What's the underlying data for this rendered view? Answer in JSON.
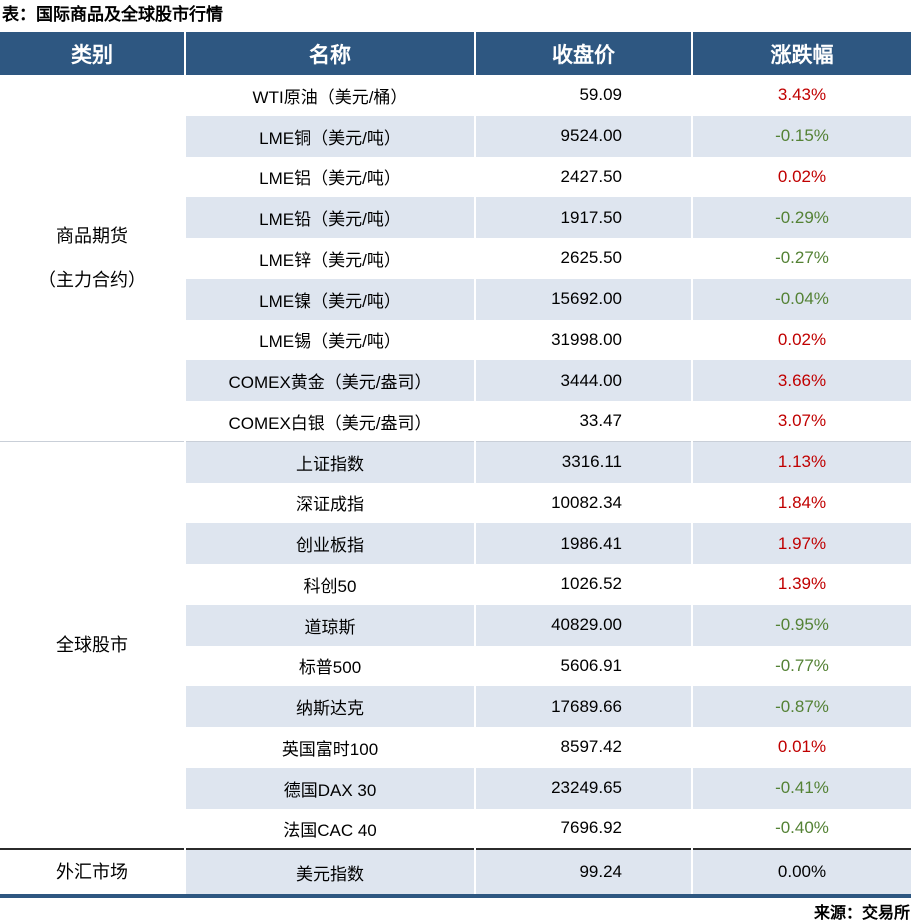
{
  "title": "表：国际商品及全球股市行情",
  "source": "来源：交易所",
  "colors": {
    "header_bg": "#2E5781",
    "stripe": "#DEE5EF",
    "up": "#C00000",
    "down": "#548235"
  },
  "table": {
    "headers": [
      "类别",
      "名称",
      "收盘价",
      "涨跌幅"
    ],
    "sections": [
      {
        "category_lines": [
          "商品期货",
          "（主力合约）"
        ],
        "rows": [
          {
            "name": "WTI原油（美元/桶）",
            "close": "59.09",
            "change": "3.43%",
            "dir": "up"
          },
          {
            "name": "LME铜（美元/吨）",
            "close": "9524.00",
            "change": "-0.15%",
            "dir": "down"
          },
          {
            "name": "LME铝（美元/吨）",
            "close": "2427.50",
            "change": "0.02%",
            "dir": "up"
          },
          {
            "name": "LME铅（美元/吨）",
            "close": "1917.50",
            "change": "-0.29%",
            "dir": "down"
          },
          {
            "name": "LME锌（美元/吨）",
            "close": "2625.50",
            "change": "-0.27%",
            "dir": "down"
          },
          {
            "name": "LME镍（美元/吨）",
            "close": "15692.00",
            "change": "-0.04%",
            "dir": "down"
          },
          {
            "name": "LME锡（美元/吨）",
            "close": "31998.00",
            "change": "0.02%",
            "dir": "up"
          },
          {
            "name": "COMEX黄金（美元/盎司）",
            "close": "3444.00",
            "change": "3.66%",
            "dir": "up"
          },
          {
            "name": "COMEX白银（美元/盎司）",
            "close": "33.47",
            "change": "3.07%",
            "dir": "up"
          }
        ]
      },
      {
        "category_lines": [
          "全球股市"
        ],
        "rows": [
          {
            "name": "上证指数",
            "close": "3316.11",
            "change": "1.13%",
            "dir": "up"
          },
          {
            "name": "深证成指",
            "close": "10082.34",
            "change": "1.84%",
            "dir": "up"
          },
          {
            "name": "创业板指",
            "close": "1986.41",
            "change": "1.97%",
            "dir": "up"
          },
          {
            "name": "科创50",
            "close": "1026.52",
            "change": "1.39%",
            "dir": "up"
          },
          {
            "name": "道琼斯",
            "close": "40829.00",
            "change": "-0.95%",
            "dir": "down"
          },
          {
            "name": "标普500",
            "close": "5606.91",
            "change": "-0.77%",
            "dir": "down"
          },
          {
            "name": "纳斯达克",
            "close": "17689.66",
            "change": "-0.87%",
            "dir": "down"
          },
          {
            "name": "英国富时100",
            "close": "8597.42",
            "change": "0.01%",
            "dir": "up"
          },
          {
            "name": "德国DAX 30",
            "close": "23249.65",
            "change": "-0.41%",
            "dir": "down"
          },
          {
            "name": "法国CAC 40",
            "close": "7696.92",
            "change": "-0.40%",
            "dir": "down"
          }
        ]
      },
      {
        "category_lines": [
          "外汇市场"
        ],
        "rows": [
          {
            "name": "美元指数",
            "close": "99.24",
            "change": "0.00%",
            "dir": "flat"
          }
        ]
      }
    ]
  }
}
